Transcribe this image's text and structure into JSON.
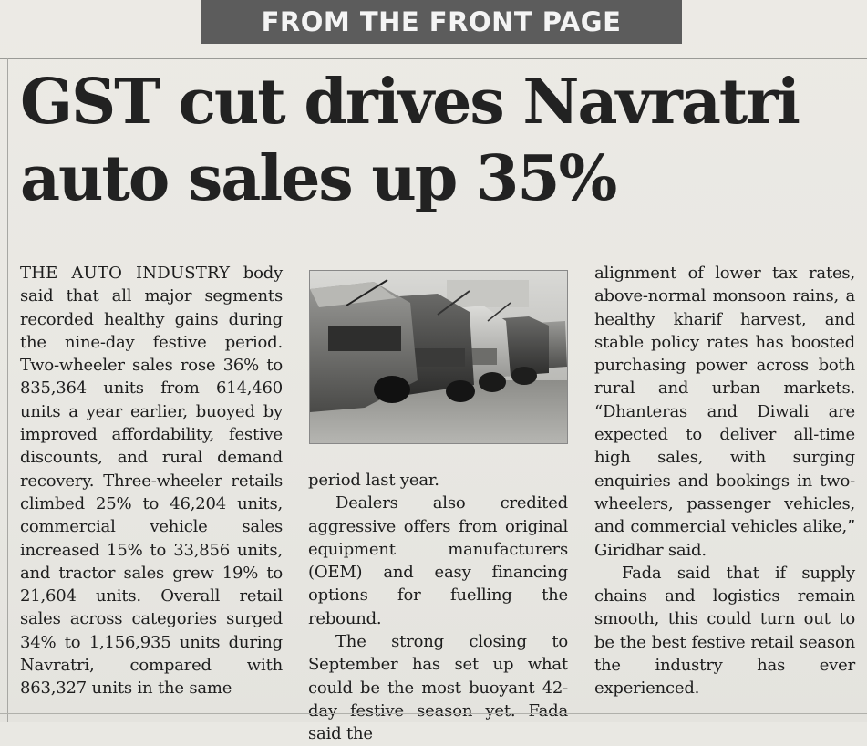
{
  "banner": "FROM THE FRONT PAGE",
  "headline": {
    "line1": "GST cut drives Navratri",
    "line2": "auto sales up 35%"
  },
  "article": {
    "col1_lead": "THE AUTO INDUSTRY",
    "col1_text": " body said that all major segments recorded healthy gains during the nine-day festive period. Two-wheeler sales rose 36% to 835,364 units from 614,460 units a year earlier, buoyed by improved affordability, festive discounts, and rural demand recovery. Three-wheeler retails climbed 25% to 46,204 units, commercial vehicle sales increased 15% to 33,856 units, and tractor sales grew 19% to 21,604 units. Overall retail sales across categories surged 34% to 1,156,935 units during Navratri, compared with 863,327 units in the same",
    "col2_p1": "period last year.",
    "col2_p2": "Dealers also credited aggressive offers from original equipment manufacturers (OEM) and easy financing options for fuelling the rebound.",
    "col2_p3": "The strong closing to September has set up what could be the most buoyant 42-day festive season yet. Fada said the",
    "col3_p1": "alignment of lower tax rates, above-normal monsoon rains, a healthy kharif harvest, and stable policy rates has boosted purchasing power across both rural and urban markets. “Dhanteras and Diwali are expected to deliver all-time high sales, with surging enquiries and bookings in two-wheelers, passenger vehicles, and commercial vehicles alike,” Giridhar said.",
    "col3_p2": "Fada said that if supply chains and logistics remain smooth, this could turn out to be the best festive retail season the industry has ever experienced."
  },
  "photo": {
    "subject": "parked-cars-photo"
  }
}
